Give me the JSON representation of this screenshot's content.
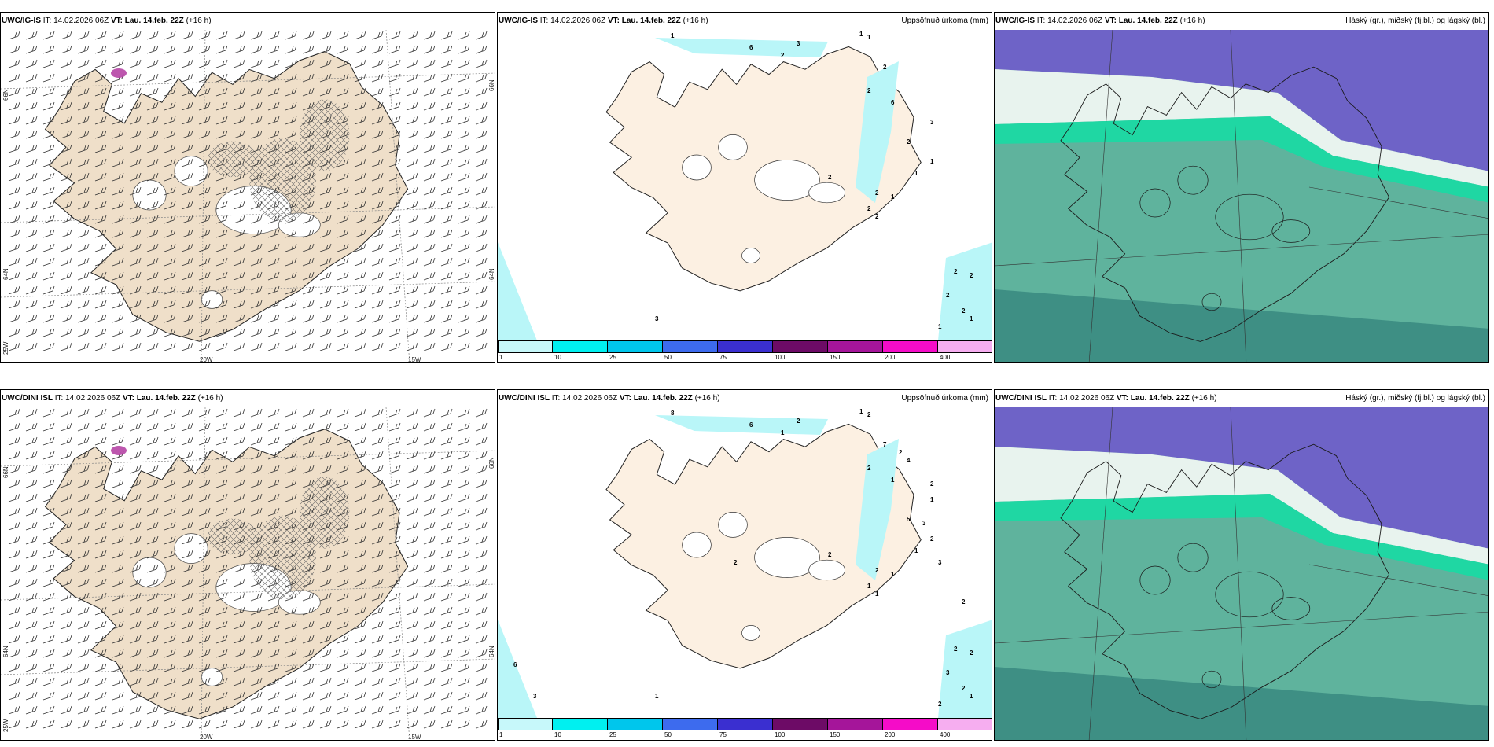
{
  "colors": {
    "land": "#efdfc9",
    "land_light": "#fcf0e2",
    "sea": "#ffffff",
    "precip_light": "#b9f6f8",
    "cloud_low": "#5fb39d",
    "cloud_mid": "#6e63c7",
    "cloud_high": "#1fd7a3",
    "snow_hatch": "#666666",
    "precip_purple": "#b23aa0"
  },
  "rows": [
    {
      "wind": {
        "model": "UWC/IG-IS",
        "it_label": "IT:",
        "it_value": "14.02.2026 06Z",
        "vt_label": "VT:",
        "vt_value": "Lau. 14.feb. 22Z",
        "lead": "(+16 h)",
        "lat_labels": [
          "66N",
          "64N",
          "25W"
        ],
        "lon_labels": [
          "20W",
          "15W"
        ],
        "right_lat_labels": [
          "66N",
          "64N"
        ]
      },
      "precip": {
        "model": "UWC/IG-IS",
        "it_label": "IT:",
        "it_value": "14.02.2026 06Z",
        "vt_label": "VT:",
        "vt_value": "Lau. 14.feb. 22Z",
        "lead": "(+16 h)",
        "title": "Uppsöfnuð úrkoma (mm)",
        "labels": [
          "1",
          "6",
          "3",
          "1",
          "2",
          "1",
          "2",
          "2",
          "6",
          "3",
          "2",
          "1",
          "2",
          "1",
          "2",
          "1",
          "2",
          "2",
          "2",
          "2",
          "2",
          "2",
          "1",
          "1",
          "3"
        ]
      },
      "cloud": {
        "model": "UWC/IG-IS",
        "it_label": "IT:",
        "it_value": "14.02.2026 06Z",
        "vt_label": "VT:",
        "vt_value": "Lau. 14.feb. 22Z",
        "lead": "(+16 h)",
        "title": "Háský (gr.), miðský (fj.bl.) og lágský (bl.)"
      }
    },
    {
      "wind": {
        "model": "UWC/DINI ISL",
        "it_label": "IT:",
        "it_value": "14.02.2026 06Z",
        "vt_label": "VT:",
        "vt_value": "Lau. 14.feb. 22Z",
        "lead": "(+16 h)",
        "lat_labels": [
          "66N",
          "64N",
          "25W"
        ],
        "lon_labels": [
          "20W",
          "15W"
        ],
        "right_lat_labels": [
          "66N",
          "64N"
        ]
      },
      "precip": {
        "model": "UWC/DINI ISL",
        "it_label": "IT:",
        "it_value": "14.02.2026 06Z",
        "vt_label": "VT:",
        "vt_value": "Lau. 14.feb. 22Z",
        "lead": "(+16 h)",
        "title": "Uppsöfnuð úrkoma (mm)",
        "labels": [
          "8",
          "6",
          "2",
          "1",
          "1",
          "2",
          "7",
          "2",
          "1",
          "1",
          "5",
          "2",
          "2",
          "1",
          "2",
          "1",
          "1",
          "1",
          "2",
          "2",
          "3",
          "2",
          "1",
          "2",
          "1",
          "4",
          "2",
          "2",
          "3",
          "3",
          "2",
          "2",
          "6",
          "3"
        ]
      },
      "cloud": {
        "model": "UWC/DINI ISL",
        "it_label": "IT:",
        "it_value": "14.02.2026 06Z",
        "vt_label": "VT:",
        "vt_value": "Lau. 14.feb. 22Z",
        "lead": "(+16 h)",
        "title": "Háský (gr.), miðský (fj.bl.) og lágský (bl.)"
      }
    }
  ],
  "colorbar": {
    "ticks": [
      "1",
      "10",
      "25",
      "50",
      "75",
      "100",
      "150",
      "200",
      "400"
    ],
    "colors": [
      "#c7f8fa",
      "#00f0f0",
      "#00c6ec",
      "#3d6bee",
      "#3a2fd0",
      "#6d0b66",
      "#a5159a",
      "#f50cc8",
      "#f6aef0"
    ]
  }
}
